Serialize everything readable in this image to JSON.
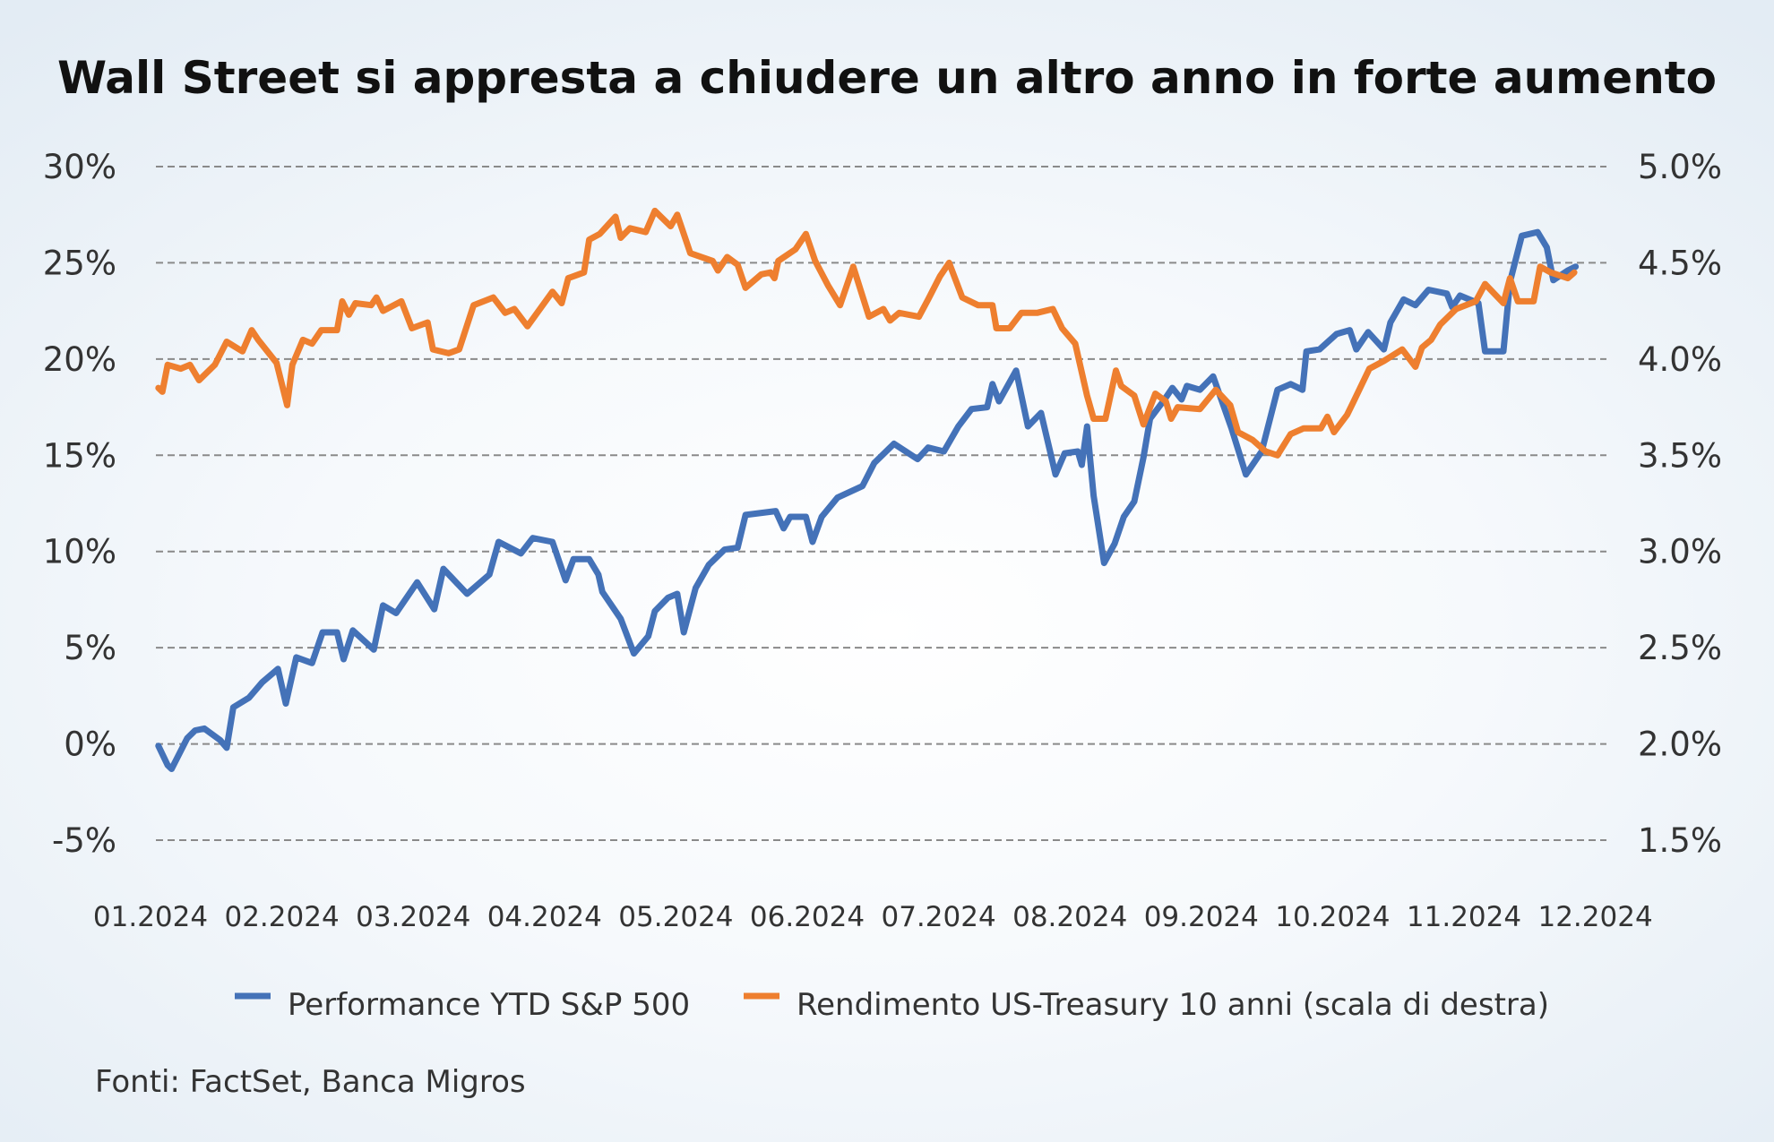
{
  "chart_data": {
    "type": "line",
    "title": "Wall Street si appresta a chiudere un altro anno in forte aumento",
    "x_unit": "months since 01.2024",
    "x_ticks": [
      "01.2024",
      "02.2024",
      "03.2024",
      "04.2024",
      "05.2024",
      "06.2024",
      "07.2024",
      "08.2024",
      "09.2024",
      "10.2024",
      "11.2024",
      "12.2024"
    ],
    "y_left": {
      "ticks": [
        "30%",
        "25%",
        "20%",
        "15%",
        "10%",
        "5%",
        "0%",
        "-5%"
      ],
      "range": [
        -5,
        30
      ]
    },
    "y_right": {
      "ticks": [
        "5.0%",
        "4.5%",
        "4.0%",
        "3.5%",
        "3.0%",
        "2.5%",
        "2.0%",
        "1.5%"
      ],
      "range": [
        1.5,
        5.0
      ]
    },
    "grid": true,
    "legend_placement": "bottom",
    "series": [
      {
        "name": "Performance YTD S&P 500",
        "axis": "left",
        "color": "#4472b8",
        "points": [
          [
            0.06,
            -0.1
          ],
          [
            0.13,
            -1.1
          ],
          [
            0.16,
            -1.3
          ],
          [
            0.28,
            0.3
          ],
          [
            0.34,
            0.7
          ],
          [
            0.41,
            0.8
          ],
          [
            0.53,
            0.2
          ],
          [
            0.58,
            -0.2
          ],
          [
            0.63,
            1.9
          ],
          [
            0.75,
            2.4
          ],
          [
            0.85,
            3.2
          ],
          [
            0.97,
            3.9
          ],
          [
            1.03,
            2.1
          ],
          [
            1.11,
            4.5
          ],
          [
            1.23,
            4.2
          ],
          [
            1.31,
            5.8
          ],
          [
            1.42,
            5.8
          ],
          [
            1.47,
            4.4
          ],
          [
            1.54,
            5.9
          ],
          [
            1.7,
            4.9
          ],
          [
            1.77,
            7.2
          ],
          [
            1.87,
            6.8
          ],
          [
            2.03,
            8.4
          ],
          [
            2.16,
            7.0
          ],
          [
            2.23,
            9.1
          ],
          [
            2.41,
            7.8
          ],
          [
            2.58,
            8.8
          ],
          [
            2.65,
            10.5
          ],
          [
            2.82,
            9.9
          ],
          [
            2.91,
            10.7
          ],
          [
            3.06,
            10.5
          ],
          [
            3.16,
            8.5
          ],
          [
            3.22,
            9.6
          ],
          [
            3.34,
            9.6
          ],
          [
            3.41,
            8.8
          ],
          [
            3.44,
            7.9
          ],
          [
            3.58,
            6.5
          ],
          [
            3.68,
            4.7
          ],
          [
            3.79,
            5.6
          ],
          [
            3.84,
            6.9
          ],
          [
            3.94,
            7.6
          ],
          [
            4.01,
            7.8
          ],
          [
            4.06,
            5.8
          ],
          [
            4.15,
            8.1
          ],
          [
            4.25,
            9.3
          ],
          [
            4.37,
            10.1
          ],
          [
            4.47,
            10.2
          ],
          [
            4.53,
            11.9
          ],
          [
            4.76,
            12.1
          ],
          [
            4.82,
            11.2
          ],
          [
            4.87,
            11.8
          ],
          [
            4.99,
            11.8
          ],
          [
            5.04,
            10.5
          ],
          [
            5.11,
            11.8
          ],
          [
            5.23,
            12.8
          ],
          [
            5.42,
            13.4
          ],
          [
            5.51,
            14.6
          ],
          [
            5.66,
            15.6
          ],
          [
            5.84,
            14.8
          ],
          [
            5.92,
            15.4
          ],
          [
            6.04,
            15.2
          ],
          [
            6.15,
            16.5
          ],
          [
            6.25,
            17.4
          ],
          [
            6.37,
            17.5
          ],
          [
            6.41,
            18.7
          ],
          [
            6.46,
            17.8
          ],
          [
            6.59,
            19.4
          ],
          [
            6.68,
            16.5
          ],
          [
            6.78,
            17.2
          ],
          [
            6.89,
            14.0
          ],
          [
            6.96,
            15.1
          ],
          [
            7.06,
            15.2
          ],
          [
            7.09,
            14.5
          ],
          [
            7.13,
            16.5
          ],
          [
            7.18,
            12.9
          ],
          [
            7.26,
            9.4
          ],
          [
            7.34,
            10.4
          ],
          [
            7.41,
            11.8
          ],
          [
            7.49,
            12.6
          ],
          [
            7.56,
            14.9
          ],
          [
            7.61,
            16.9
          ],
          [
            7.72,
            17.9
          ],
          [
            7.78,
            18.5
          ],
          [
            7.85,
            17.9
          ],
          [
            7.89,
            18.6
          ],
          [
            7.99,
            18.4
          ],
          [
            8.09,
            19.1
          ],
          [
            8.23,
            16.4
          ],
          [
            8.34,
            14.0
          ],
          [
            8.46,
            15.2
          ],
          [
            8.58,
            18.4
          ],
          [
            8.68,
            18.7
          ],
          [
            8.77,
            18.4
          ],
          [
            8.8,
            20.4
          ],
          [
            8.9,
            20.5
          ],
          [
            9.03,
            21.3
          ],
          [
            9.13,
            21.5
          ],
          [
            9.18,
            20.5
          ],
          [
            9.27,
            21.4
          ],
          [
            9.39,
            20.5
          ],
          [
            9.44,
            21.9
          ],
          [
            9.54,
            23.1
          ],
          [
            9.63,
            22.8
          ],
          [
            9.73,
            23.6
          ],
          [
            9.87,
            23.4
          ],
          [
            9.91,
            22.7
          ],
          [
            9.97,
            23.3
          ],
          [
            10.11,
            22.9
          ],
          [
            10.16,
            20.4
          ],
          [
            10.3,
            20.4
          ],
          [
            10.35,
            24.0
          ],
          [
            10.44,
            26.4
          ],
          [
            10.56,
            26.6
          ],
          [
            10.63,
            25.8
          ],
          [
            10.68,
            24.1
          ],
          [
            10.79,
            24.6
          ],
          [
            10.85,
            24.8
          ]
        ]
      },
      {
        "name": "Rendimento US-Treasury 10 anni (scala di destra)",
        "axis": "right",
        "color": "#ee7f2f",
        "points": [
          [
            0.06,
            3.85
          ],
          [
            0.09,
            3.83
          ],
          [
            0.13,
            3.97
          ],
          [
            0.23,
            3.95
          ],
          [
            0.3,
            3.97
          ],
          [
            0.37,
            3.89
          ],
          [
            0.49,
            3.97
          ],
          [
            0.58,
            4.09
          ],
          [
            0.7,
            4.04
          ],
          [
            0.77,
            4.15
          ],
          [
            0.82,
            4.1
          ],
          [
            0.96,
            3.98
          ],
          [
            1.04,
            3.76
          ],
          [
            1.08,
            3.97
          ],
          [
            1.16,
            4.1
          ],
          [
            1.23,
            4.08
          ],
          [
            1.3,
            4.15
          ],
          [
            1.42,
            4.15
          ],
          [
            1.46,
            4.3
          ],
          [
            1.51,
            4.23
          ],
          [
            1.56,
            4.29
          ],
          [
            1.68,
            4.28
          ],
          [
            1.72,
            4.32
          ],
          [
            1.77,
            4.25
          ],
          [
            1.91,
            4.3
          ],
          [
            1.99,
            4.16
          ],
          [
            2.11,
            4.19
          ],
          [
            2.15,
            4.05
          ],
          [
            2.27,
            4.03
          ],
          [
            2.35,
            4.05
          ],
          [
            2.46,
            4.28
          ],
          [
            2.61,
            4.32
          ],
          [
            2.7,
            4.24
          ],
          [
            2.77,
            4.26
          ],
          [
            2.87,
            4.17
          ],
          [
            3.06,
            4.35
          ],
          [
            3.13,
            4.29
          ],
          [
            3.18,
            4.42
          ],
          [
            3.3,
            4.45
          ],
          [
            3.34,
            4.62
          ],
          [
            3.42,
            4.65
          ],
          [
            3.54,
            4.74
          ],
          [
            3.58,
            4.63
          ],
          [
            3.65,
            4.68
          ],
          [
            3.77,
            4.66
          ],
          [
            3.84,
            4.77
          ],
          [
            3.96,
            4.69
          ],
          [
            4.01,
            4.75
          ],
          [
            4.11,
            4.55
          ],
          [
            4.28,
            4.51
          ],
          [
            4.32,
            4.46
          ],
          [
            4.39,
            4.53
          ],
          [
            4.47,
            4.49
          ],
          [
            4.53,
            4.37
          ],
          [
            4.65,
            4.44
          ],
          [
            4.72,
            4.45
          ],
          [
            4.75,
            4.42
          ],
          [
            4.78,
            4.51
          ],
          [
            4.91,
            4.57
          ],
          [
            4.99,
            4.65
          ],
          [
            5.06,
            4.51
          ],
          [
            5.16,
            4.38
          ],
          [
            5.25,
            4.28
          ],
          [
            5.35,
            4.48
          ],
          [
            5.47,
            4.22
          ],
          [
            5.58,
            4.26
          ],
          [
            5.63,
            4.2
          ],
          [
            5.7,
            4.24
          ],
          [
            5.85,
            4.22
          ],
          [
            5.92,
            4.31
          ],
          [
            6.01,
            4.43
          ],
          [
            6.08,
            4.5
          ],
          [
            6.18,
            4.32
          ],
          [
            6.3,
            4.28
          ],
          [
            6.41,
            4.28
          ],
          [
            6.44,
            4.16
          ],
          [
            6.54,
            4.16
          ],
          [
            6.63,
            4.24
          ],
          [
            6.75,
            4.24
          ],
          [
            6.87,
            4.26
          ],
          [
            6.94,
            4.16
          ],
          [
            7.04,
            4.08
          ],
          [
            7.13,
            3.81
          ],
          [
            7.18,
            3.69
          ],
          [
            7.27,
            3.69
          ],
          [
            7.35,
            3.94
          ],
          [
            7.39,
            3.86
          ],
          [
            7.49,
            3.81
          ],
          [
            7.56,
            3.66
          ],
          [
            7.65,
            3.82
          ],
          [
            7.73,
            3.78
          ],
          [
            7.77,
            3.69
          ],
          [
            7.82,
            3.75
          ],
          [
            7.99,
            3.74
          ],
          [
            8.11,
            3.84
          ],
          [
            8.22,
            3.76
          ],
          [
            8.28,
            3.62
          ],
          [
            8.39,
            3.58
          ],
          [
            8.49,
            3.52
          ],
          [
            8.58,
            3.5
          ],
          [
            8.68,
            3.61
          ],
          [
            8.78,
            3.64
          ],
          [
            8.91,
            3.64
          ],
          [
            8.96,
            3.7
          ],
          [
            9.01,
            3.62
          ],
          [
            9.11,
            3.71
          ],
          [
            9.16,
            3.78
          ],
          [
            9.28,
            3.95
          ],
          [
            9.39,
            3.99
          ],
          [
            9.53,
            4.05
          ],
          [
            9.63,
            3.96
          ],
          [
            9.68,
            4.06
          ],
          [
            9.75,
            4.1
          ],
          [
            9.82,
            4.18
          ],
          [
            9.94,
            4.26
          ],
          [
            10.09,
            4.3
          ],
          [
            10.16,
            4.39
          ],
          [
            10.3,
            4.29
          ],
          [
            10.35,
            4.42
          ],
          [
            10.41,
            4.3
          ],
          [
            10.53,
            4.3
          ],
          [
            10.58,
            4.48
          ],
          [
            10.66,
            4.45
          ],
          [
            10.79,
            4.42
          ],
          [
            10.84,
            4.45
          ]
        ]
      }
    ],
    "source": "Fonti: FactSet, Banca Migros"
  }
}
